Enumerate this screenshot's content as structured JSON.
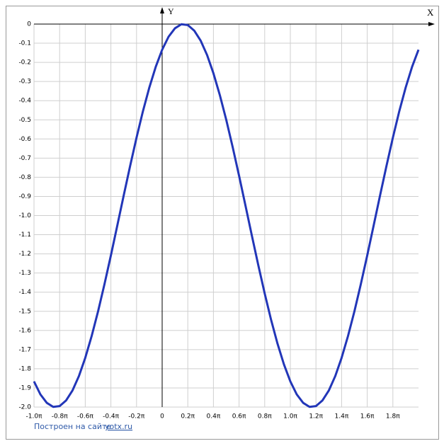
{
  "chart_data": {
    "type": "line",
    "xlabel": "X",
    "ylabel": "Y",
    "color": "#2236b8",
    "grid": true,
    "x": [
      -1.0,
      -0.95,
      -0.9,
      -0.85,
      -0.8,
      -0.75,
      -0.7,
      -0.65,
      -0.6,
      -0.55,
      -0.5,
      -0.45,
      -0.4,
      -0.35,
      -0.3,
      -0.25,
      -0.2,
      -0.15,
      -0.1,
      -0.05,
      0,
      0.05,
      0.1,
      0.15,
      0.2,
      0.25,
      0.3,
      0.35,
      0.4,
      0.45,
      0.5,
      0.55,
      0.6,
      0.65,
      0.7,
      0.75,
      0.8,
      0.85,
      0.9,
      0.95,
      1.0,
      1.05,
      1.1,
      1.15,
      1.2,
      1.25,
      1.3,
      1.35,
      1.4,
      1.45,
      1.5,
      1.55,
      1.6,
      1.65,
      1.7,
      1.75,
      1.8,
      1.85,
      1.9,
      1.95,
      2.0
    ],
    "values": [
      -1.866,
      -1.934,
      -1.978,
      -1.999,
      -1.995,
      -1.966,
      -1.914,
      -1.839,
      -1.743,
      -1.629,
      -1.5,
      -1.358,
      -1.208,
      -1.052,
      -0.895,
      -0.741,
      -0.593,
      -0.455,
      -0.331,
      -0.223,
      -0.134,
      -0.066,
      -0.022,
      -0.001,
      -0.005,
      -0.034,
      -0.086,
      -0.161,
      -0.257,
      -0.371,
      -0.5,
      -0.642,
      -0.792,
      -0.948,
      -1.105,
      -1.259,
      -1.407,
      -1.545,
      -1.669,
      -1.777,
      -1.866,
      -1.934,
      -1.978,
      -1.999,
      -1.995,
      -1.966,
      -1.914,
      -1.839,
      -1.743,
      -1.629,
      -1.5,
      -1.358,
      -1.208,
      -1.052,
      -0.895,
      -0.741,
      -0.593,
      -0.455,
      -0.331,
      -0.223,
      -0.134
    ],
    "xlim": [
      -1.0,
      2.0
    ],
    "ylim": [
      -2.0,
      0
    ],
    "xticks": [
      {
        "value": -1.0,
        "label": "-1.0π"
      },
      {
        "value": -0.8,
        "label": "-0.8π"
      },
      {
        "value": -0.6,
        "label": "-0.6π"
      },
      {
        "value": -0.4,
        "label": "-0.4π"
      },
      {
        "value": -0.2,
        "label": "-0.2π"
      },
      0,
      {
        "value": 0.2,
        "label": "0.2π"
      },
      {
        "value": 0.4,
        "label": "0.4π"
      },
      {
        "value": 0.6,
        "label": "0.6π"
      },
      {
        "value": 0.8,
        "label": "0.8π"
      },
      {
        "value": 1.0,
        "label": "1.0π"
      },
      {
        "value": 1.2,
        "label": "1.2π"
      },
      {
        "value": 1.4,
        "label": "1.4π"
      },
      {
        "value": 1.6,
        "label": "1.6π"
      },
      {
        "value": 1.8,
        "label": "1.8π"
      }
    ],
    "yticks": [
      0,
      -0.1,
      -0.2,
      -0.3,
      -0.4,
      -0.5,
      -0.6,
      -0.7,
      -0.8,
      -0.9,
      {
        "value": -1,
        "label": "-1.0"
      },
      -1.1,
      -1.2,
      -1.3,
      -1.4,
      -1.5,
      -1.6,
      -1.7,
      -1.8,
      -1.9,
      {
        "value": -2,
        "label": "-2.0"
      }
    ]
  },
  "footer": {
    "text": "Построен на сайте",
    "link": "yotx.ru"
  }
}
